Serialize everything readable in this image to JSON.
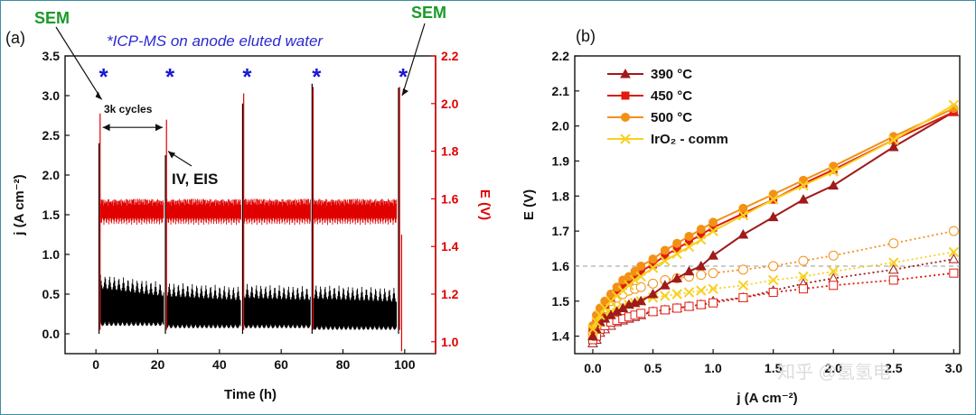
{
  "chart_data": [
    {
      "type": "line",
      "panel": "(a)",
      "xlabel": "Time (h)",
      "ylabel_left": "j (A cm⁻²)",
      "ylabel_right": "E (V)",
      "xlim": [
        -10,
        110
      ],
      "xticks": [
        0,
        20,
        40,
        60,
        80,
        100
      ],
      "ylim_left": [
        -0.25,
        3.5
      ],
      "yticks_left": [
        "0.0",
        "0.5",
        "1.0",
        "1.5",
        "2.0",
        "2.5",
        "3.0",
        "3.5"
      ],
      "ylim_right": [
        0.95,
        2.2
      ],
      "yticks_right": [
        "1.0",
        "1.2",
        "1.4",
        "1.6",
        "1.8",
        "2.0",
        "2.2"
      ],
      "annotation_top": "*ICP-MS on anode eluted water",
      "sem_label": "SEM",
      "cycles_label": "3k cycles",
      "iv_eis_label": "IV, EIS",
      "star_symbol": "*",
      "star_times": [
        1,
        22.5,
        47.5,
        70,
        98
      ],
      "interruption_times": [
        1,
        22.5,
        47.5,
        70,
        98
      ],
      "series": [
        {
          "name": "j",
          "color": "#000000",
          "axis": "left",
          "segments": [
            {
              "t": [
                1.5,
                22
              ],
              "j_low": 0.15,
              "j_high_start": 0.75,
              "j_high_end": 0.65
            },
            {
              "t": [
                23,
                47
              ],
              "j_low": 0.12,
              "j_high_start": 0.65,
              "j_high_end": 0.6
            },
            {
              "t": [
                48,
                69.5
              ],
              "j_low": 0.12,
              "j_high_start": 0.63,
              "j_high_end": 0.6
            },
            {
              "t": [
                70.5,
                97.5
              ],
              "j_low": 0.1,
              "j_high_start": 0.62,
              "j_high_end": 0.58
            }
          ],
          "spikes": [
            {
              "t": 1,
              "j": 2.4
            },
            {
              "t": 22.5,
              "j": 2.25
            },
            {
              "t": 47.5,
              "j": 2.9
            },
            {
              "t": 70,
              "j": 3.15
            },
            {
              "t": 98,
              "j": 3.1
            }
          ]
        },
        {
          "name": "E",
          "color": "#e00000",
          "axis": "right",
          "band": [
            1.49,
            1.6
          ],
          "t_range": [
            0.5,
            99
          ]
        }
      ]
    },
    {
      "type": "line",
      "panel": "(b)",
      "xlabel": "j (A cm⁻²)",
      "ylabel": "E (V)",
      "xlim": [
        -0.15,
        3.05
      ],
      "xticks": [
        "0.0",
        "0.5",
        "1.0",
        "1.5",
        "2.0",
        "2.5",
        "3.0"
      ],
      "ylim": [
        1.35,
        2.2
      ],
      "yticks": [
        "1.4",
        "1.5",
        "1.6",
        "1.7",
        "1.8",
        "1.9",
        "2.0",
        "2.1",
        "2.2"
      ],
      "reference_line_E": 1.6,
      "x": [
        0.0,
        0.03,
        0.06,
        0.1,
        0.15,
        0.2,
        0.25,
        0.3,
        0.35,
        0.4,
        0.5,
        0.6,
        0.7,
        0.8,
        0.9,
        1.0,
        1.25,
        1.5,
        1.75,
        2.0,
        2.5,
        3.0
      ],
      "series": [
        {
          "name": "390 °C",
          "color": "#a01a1a",
          "marker": "triangle",
          "values": [
            1.4,
            1.42,
            1.44,
            1.45,
            1.46,
            1.47,
            1.48,
            1.49,
            1.495,
            1.5,
            1.52,
            1.545,
            1.565,
            1.585,
            1.6,
            1.63,
            1.69,
            1.74,
            1.79,
            1.83,
            1.94,
            2.04
          ]
        },
        {
          "name": "450 °C",
          "color": "#e01a10",
          "marker": "square",
          "values": [
            1.42,
            1.45,
            1.47,
            1.49,
            1.51,
            1.53,
            1.545,
            1.56,
            1.575,
            1.585,
            1.605,
            1.63,
            1.65,
            1.67,
            1.69,
            1.71,
            1.75,
            1.79,
            1.835,
            1.875,
            1.96,
            2.04
          ]
        },
        {
          "name": "500 °C",
          "color": "#f39016",
          "marker": "circle",
          "values": [
            1.43,
            1.46,
            1.48,
            1.5,
            1.52,
            1.54,
            1.56,
            1.57,
            1.585,
            1.6,
            1.62,
            1.645,
            1.665,
            1.685,
            1.705,
            1.725,
            1.765,
            1.805,
            1.845,
            1.885,
            1.97,
            2.05
          ]
        },
        {
          "name": "IrO₂ - comm",
          "color": "#f8d020",
          "marker": "x",
          "values": [
            1.42,
            1.44,
            1.46,
            1.48,
            1.5,
            1.515,
            1.53,
            1.545,
            1.56,
            1.57,
            1.595,
            1.615,
            1.635,
            1.655,
            1.675,
            1.7,
            1.745,
            1.79,
            1.83,
            1.87,
            1.96,
            2.06
          ]
        }
      ],
      "open_series": [
        {
          "color": "#a01a1a",
          "marker": "triangle-open",
          "values": [
            1.38,
            1.39,
            1.41,
            1.42,
            1.43,
            1.44,
            1.445,
            1.45,
            1.455,
            1.46,
            1.47,
            1.475,
            1.48,
            1.485,
            1.49,
            1.5,
            1.51,
            1.53,
            1.55,
            1.565,
            1.59,
            1.62
          ]
        },
        {
          "color": "#e01a10",
          "marker": "square-open",
          "values": [
            1.39,
            1.4,
            1.42,
            1.43,
            1.44,
            1.445,
            1.45,
            1.455,
            1.46,
            1.465,
            1.47,
            1.475,
            1.48,
            1.485,
            1.49,
            1.495,
            1.51,
            1.525,
            1.535,
            1.545,
            1.56,
            1.58
          ]
        },
        {
          "color": "#f39016",
          "marker": "circle-open",
          "values": [
            1.41,
            1.43,
            1.46,
            1.48,
            1.5,
            1.51,
            1.52,
            1.53,
            1.535,
            1.54,
            1.55,
            1.56,
            1.565,
            1.57,
            1.575,
            1.58,
            1.59,
            1.6,
            1.615,
            1.63,
            1.665,
            1.7
          ]
        },
        {
          "color": "#f8d020",
          "marker": "x",
          "values": [
            1.41,
            1.42,
            1.44,
            1.46,
            1.47,
            1.48,
            1.485,
            1.49,
            1.495,
            1.5,
            1.51,
            1.515,
            1.52,
            1.525,
            1.53,
            1.535,
            1.545,
            1.56,
            1.57,
            1.585,
            1.61,
            1.64
          ]
        }
      ]
    }
  ],
  "watermark": "知乎 @氢氢电"
}
